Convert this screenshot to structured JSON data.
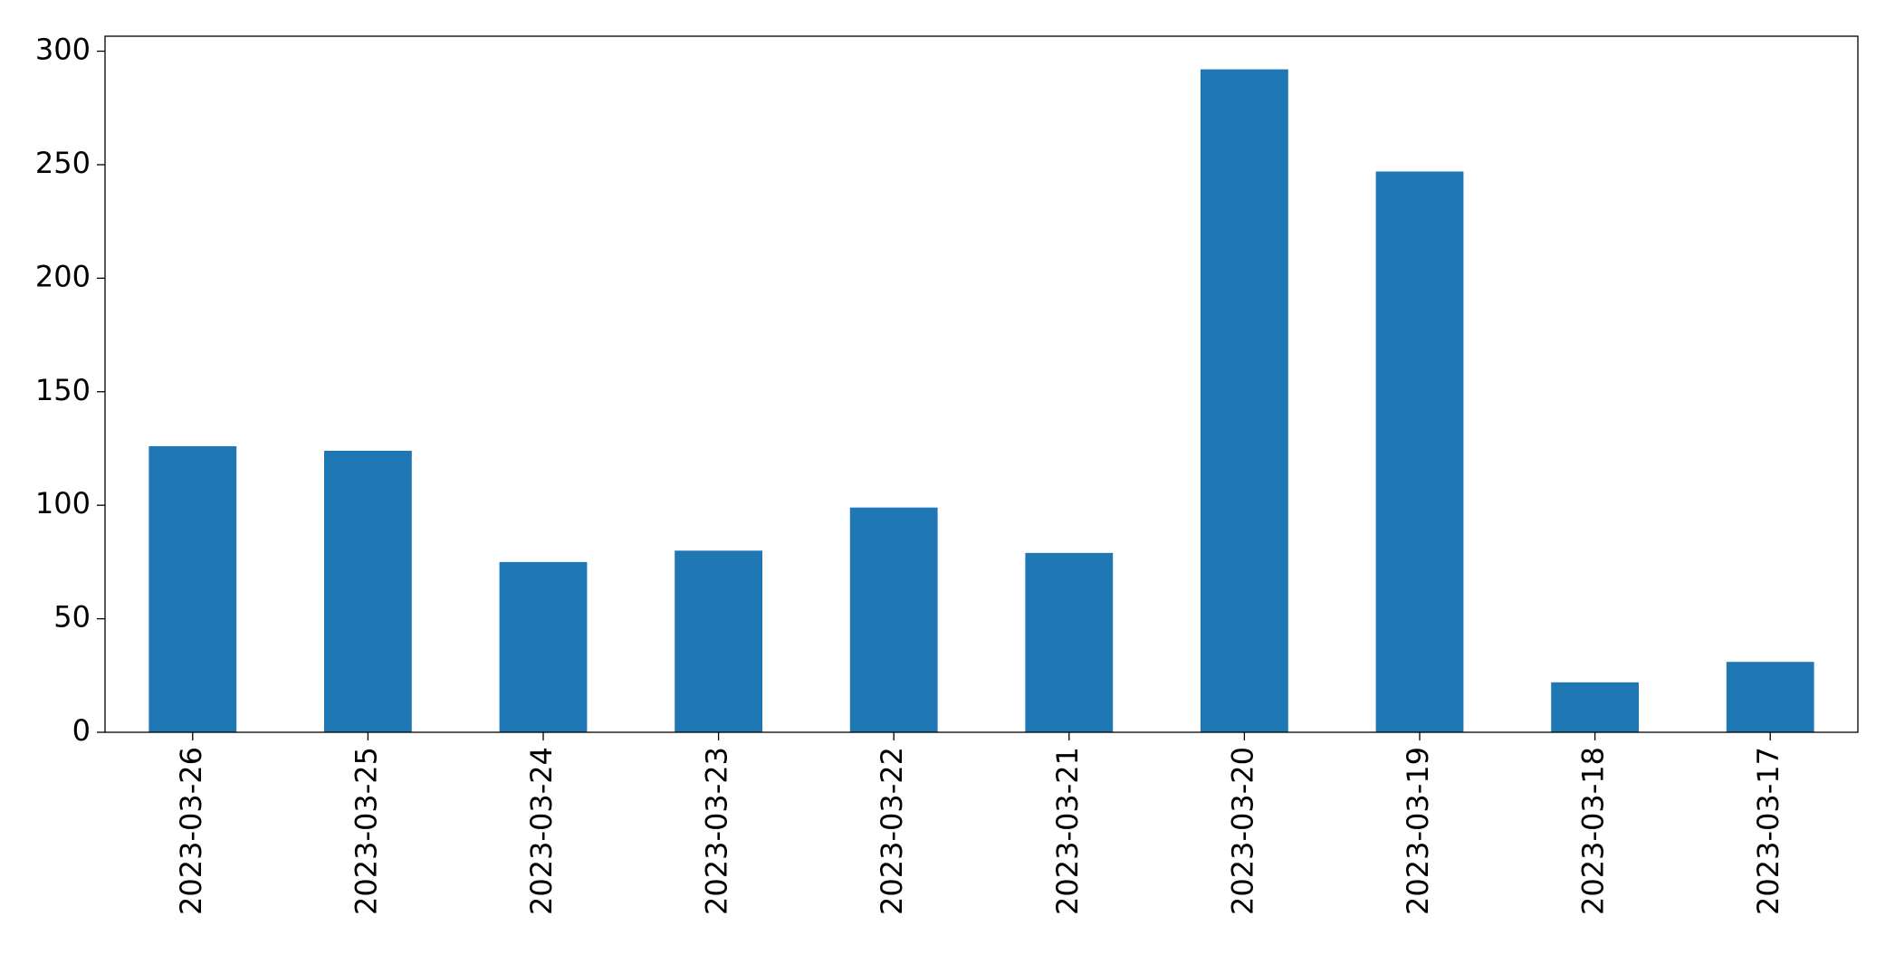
{
  "chart_data": {
    "type": "bar",
    "categories": [
      "2023-03-26",
      "2023-03-25",
      "2023-03-24",
      "2023-03-23",
      "2023-03-22",
      "2023-03-21",
      "2023-03-20",
      "2023-03-19",
      "2023-03-18",
      "2023-03-17"
    ],
    "values": [
      126,
      124,
      75,
      80,
      99,
      79,
      292,
      247,
      22,
      31
    ],
    "color": "#1f77b4",
    "ylim": [
      0,
      306.6
    ],
    "yticks": [
      0,
      50,
      100,
      150,
      200,
      250,
      300
    ],
    "grid": false
  }
}
